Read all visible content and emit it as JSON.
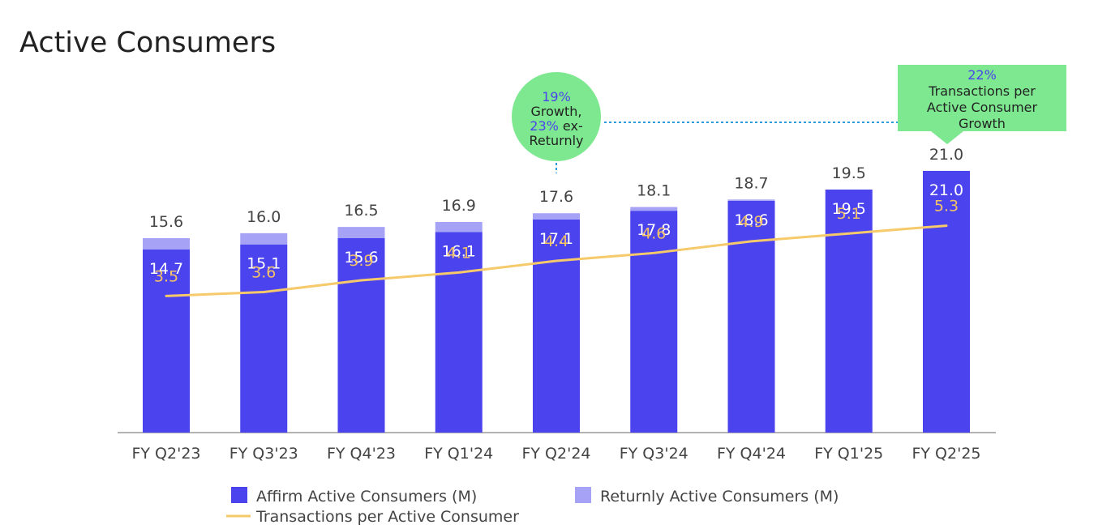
{
  "title": "Active Consumers",
  "colors": {
    "affirm": "#4b44ee",
    "returnly": "#a6a3f7",
    "line": "#f6c96a",
    "callout": "#7de88f",
    "callout_accent": "#4b44ee",
    "dotted": "#2b9be0"
  },
  "chart_data": {
    "type": "bar",
    "stacked": true,
    "categories": [
      "FY Q2'23",
      "FY Q3'23",
      "FY Q4'23",
      "FY Q1'24",
      "FY Q2'24",
      "FY Q3'24",
      "FY Q4'24",
      "FY Q1'25",
      "FY Q2'25"
    ],
    "ylim": [
      0,
      26
    ],
    "line_ylim": [
      0,
      8.3
    ],
    "series": [
      {
        "name": "Affirm Active Consumers (M)",
        "kind": "bar",
        "values": [
          14.7,
          15.1,
          15.6,
          16.1,
          17.1,
          17.8,
          18.6,
          19.5,
          21.0
        ]
      },
      {
        "name": "Returnly Active Consumers (M)",
        "kind": "bar",
        "values": [
          0.9,
          0.9,
          0.9,
          0.8,
          0.5,
          0.3,
          0.1,
          0,
          0
        ]
      },
      {
        "name": "Transactions per Active Consumer",
        "kind": "line",
        "values": [
          3.5,
          3.6,
          3.9,
          4.1,
          4.4,
          4.6,
          4.9,
          5.1,
          5.3
        ]
      }
    ],
    "totals": [
      15.6,
      16.0,
      16.5,
      16.9,
      17.6,
      18.1,
      18.7,
      19.5,
      21.0
    ],
    "total_labels": [
      "15.6",
      "16.0",
      "16.5",
      "16.9",
      "17.6",
      "18.1",
      "18.7",
      "19.5",
      "21.0"
    ],
    "affirm_labels": [
      "14.7",
      "15.1",
      "15.6",
      "16.1",
      "17.1",
      "17.8",
      "18.6",
      "19.5",
      "21.0"
    ],
    "line_labels": [
      "3.5",
      "3.6",
      "3.9",
      "4.1",
      "4.4",
      "4.6",
      "4.9",
      "5.1",
      "5.3"
    ],
    "legend": {
      "placement": "bottom",
      "items": [
        "Affirm Active Consumers (M)",
        "Returnly Active Consumers (M)",
        "Transactions per Active Consumer"
      ]
    },
    "grid": false,
    "annotations": {
      "growth_circle": {
        "lines": [
          [
            {
              "text": "19%",
              "accent": true
            }
          ],
          [
            {
              "text": "Growth,",
              "accent": false
            }
          ],
          [
            {
              "text": "23%",
              "accent": true
            },
            {
              "text": " ex-",
              "accent": false
            }
          ],
          [
            {
              "text": "Returnly",
              "accent": false
            }
          ]
        ]
      },
      "tpac_box": {
        "lines": [
          [
            {
              "text": "22%",
              "accent": true
            }
          ],
          [
            {
              "text": "Transactions per",
              "accent": false
            }
          ],
          [
            {
              "text": "Active Consumer",
              "accent": false
            }
          ],
          [
            {
              "text": "Growth",
              "accent": false
            }
          ]
        ]
      }
    }
  }
}
